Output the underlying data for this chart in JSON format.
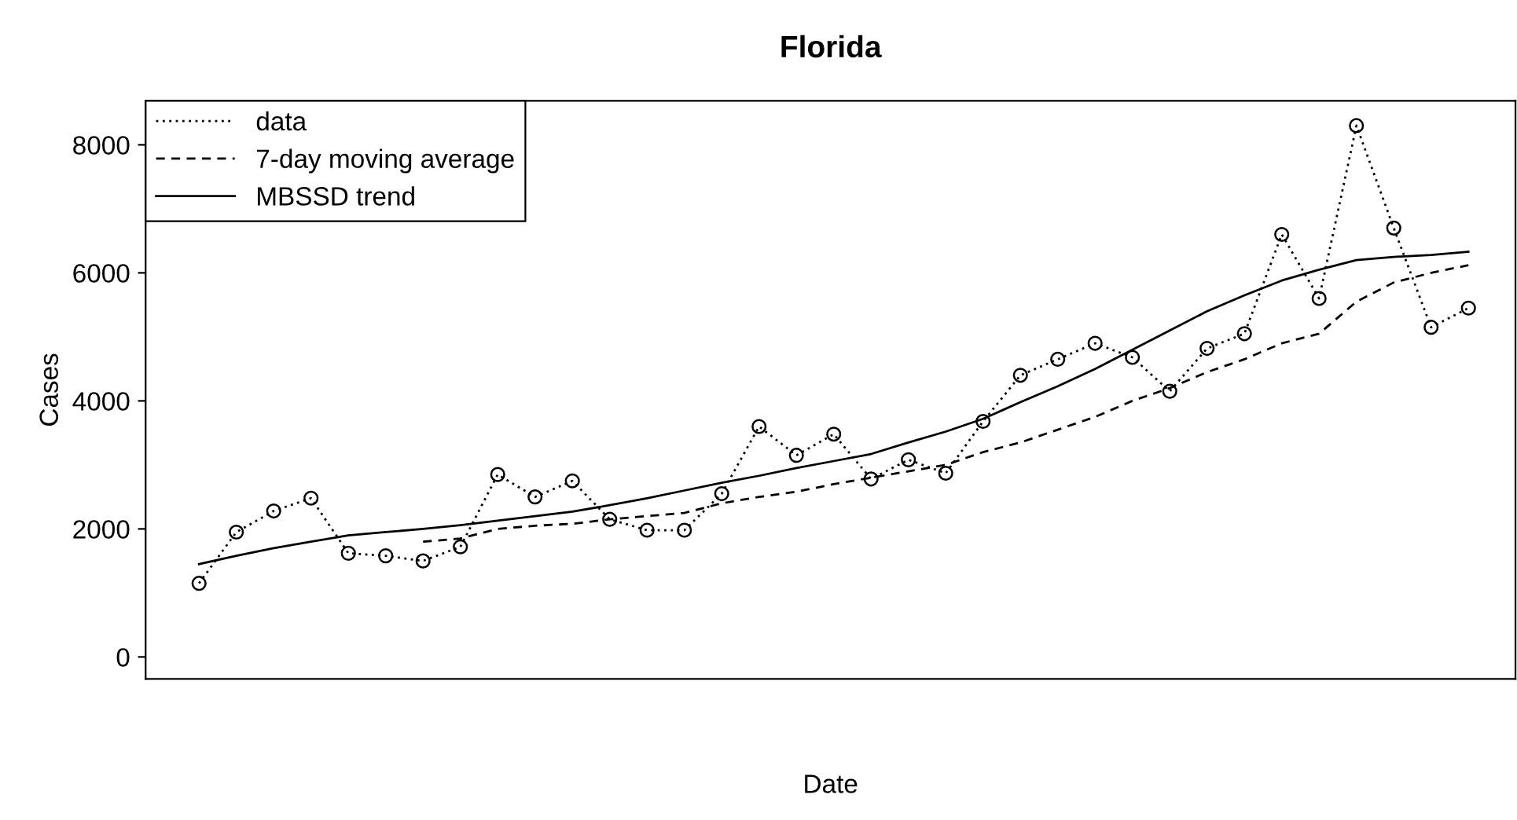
{
  "chart_data": {
    "type": "line",
    "title": "Florida",
    "xlabel": "Date",
    "ylabel": "Cases",
    "categories": [
      null,
      null,
      null,
      null,
      null,
      null,
      null,
      null,
      null,
      null,
      null,
      null,
      null,
      null,
      null,
      null,
      null,
      null,
      null,
      null,
      null,
      null,
      null,
      null,
      null,
      null,
      null,
      null,
      null,
      null,
      null,
      null,
      null,
      null,
      null
    ],
    "ylim": [
      -344,
      8687
    ],
    "yticks": [
      0,
      2000,
      4000,
      6000,
      8000
    ],
    "grid": false,
    "legend": "top left",
    "series": [
      {
        "name": "data",
        "color": "#000000",
        "line_style": "dotted",
        "marker": "circle",
        "values": [
          1150,
          1950,
          2280,
          2480,
          1620,
          1580,
          1500,
          1720,
          2850,
          2500,
          2750,
          2150,
          1980,
          1980,
          2550,
          3600,
          3150,
          3480,
          2780,
          3080,
          2870,
          3680,
          4400,
          4650,
          4900,
          4680,
          4150,
          4820,
          5050,
          6600,
          5600,
          8300,
          6700,
          5150,
          5450
        ]
      },
      {
        "name": "7-day moving average",
        "color": "#000000",
        "line_style": "dashed",
        "marker": "none",
        "values": [
          null,
          null,
          null,
          null,
          null,
          null,
          1800,
          1850,
          2000,
          2050,
          2080,
          2150,
          2200,
          2250,
          2400,
          2500,
          2580,
          2700,
          2800,
          2900,
          3000,
          3200,
          3350,
          3550,
          3750,
          4000,
          4200,
          4450,
          4650,
          4900,
          5050,
          5550,
          5850,
          6000,
          6120
        ]
      },
      {
        "name": "MBSSD trend",
        "color": "#000000",
        "line_style": "solid",
        "marker": "none",
        "values": [
          1450,
          1580,
          1700,
          1800,
          1900,
          1950,
          2000,
          2060,
          2130,
          2200,
          2270,
          2370,
          2480,
          2600,
          2720,
          2830,
          2950,
          3060,
          3170,
          3350,
          3520,
          3720,
          3980,
          4230,
          4500,
          4800,
          5100,
          5400,
          5650,
          5880,
          6050,
          6200,
          6250,
          6280,
          6330
        ]
      }
    ]
  }
}
